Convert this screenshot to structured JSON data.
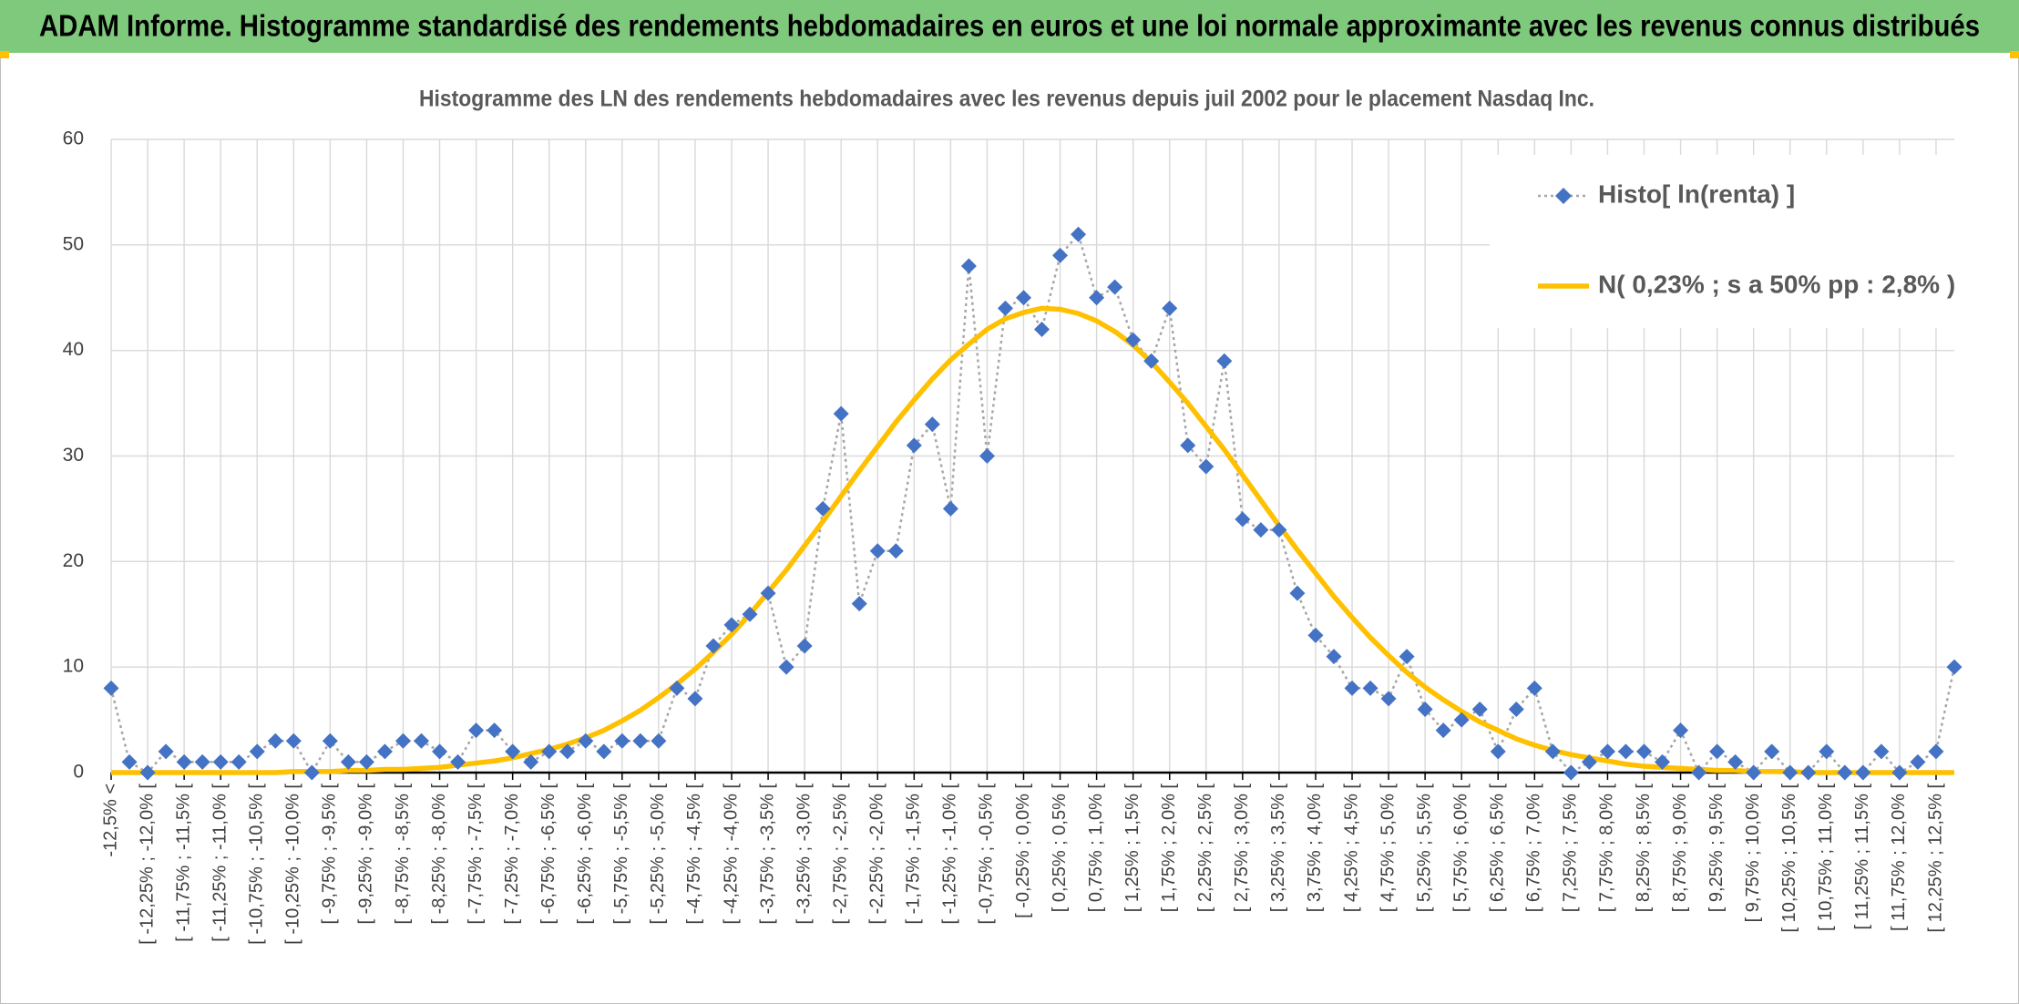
{
  "header": {
    "title": "ADAM Informe. Histogramme standardisé des rendements hebdomadaires en euros et une loi normale approximante avec les revenus connus distribués"
  },
  "chart_data": {
    "type": "line",
    "title": "Histogramme des LN des rendements hebdomadaires avec les revenus depuis juil 2002 pour le placement Nasdaq Inc.",
    "categories": [
      "-12,5% <",
      null,
      "[ -12,25% ; -12,0% [",
      null,
      "[ -11,75% ; -11,5% [",
      null,
      "[ -11,25% ; -11,0% [",
      null,
      "[ -10,75% ; -10,5% [",
      null,
      "[ -10,25% ; -10,0% [",
      null,
      "[ -9,75% ; -9,5% [",
      null,
      "[ -9,25% ; -9,0% [",
      null,
      "[ -8,75% ; -8,5% [",
      null,
      "[ -8,25% ; -8,0% [",
      null,
      "[ -7,75% ; -7,5% [",
      null,
      "[ -7,25% ; -7,0% [",
      null,
      "[ -6,75% ; -6,5% [",
      null,
      "[ -6,25% ; -6,0% [",
      null,
      "[ -5,75% ; -5,5% [",
      null,
      "[ -5,25% ; -5,0% [",
      null,
      "[ -4,75% ; -4,5% [",
      null,
      "[ -4,25% ; -4,0% [",
      null,
      "[ -3,75% ; -3,5% [",
      null,
      "[ -3,25% ; -3,0% [",
      null,
      "[ -2,75% ; -2,5% [",
      null,
      "[ -2,25% ; -2,0% [",
      null,
      "[ -1,75% ; -1,5% [",
      null,
      "[ -1,25% ; -1,0% [",
      null,
      "[ -0,75% ; -0,5% [",
      null,
      "[ -0,25% ; 0,0% [",
      null,
      "[ 0,25% ; 0,5% [",
      null,
      "[ 0,75% ; 1,0% [",
      null,
      "[ 1,25% ; 1,5% [",
      null,
      "[ 1,75% ; 2,0% [",
      null,
      "[ 2,25% ; 2,5% [",
      null,
      "[ 2,75% ; 3,0% [",
      null,
      "[ 3,25% ; 3,5% [",
      null,
      "[ 3,75% ; 4,0% [",
      null,
      "[ 4,25% ; 4,5% [",
      null,
      "[ 4,75% ; 5,0% [",
      null,
      "[ 5,25% ; 5,5% [",
      null,
      "[ 5,75% ; 6,0% [",
      null,
      "[ 6,25% ; 6,5% [",
      null,
      "[ 6,75% ; 7,0% [",
      null,
      "[ 7,25% ; 7,5% [",
      null,
      "[ 7,75% ; 8,0% [",
      null,
      "[ 8,25% ; 8,5% [",
      null,
      "[ 8,75% ; 9,0% [",
      null,
      "[ 9,25% ; 9,5% [",
      null,
      "[ 9,75% ; 10,0% [",
      null,
      "[ 10,25% ; 10,5% [",
      null,
      "[ 10,75% ; 11,0% [",
      null,
      "[ 11,25% ; 11,5% [",
      null,
      "[ 11,75% ; 12,0% [",
      null,
      "[ 12,25% ; 12,5% [",
      null
    ],
    "series": [
      {
        "name": "Histo[ ln(renta) ]",
        "color": "#4472c4",
        "values": [
          8,
          1,
          0,
          2,
          1,
          1,
          1,
          1,
          2,
          3,
          3,
          0,
          3,
          1,
          1,
          2,
          3,
          3,
          2,
          1,
          4,
          4,
          2,
          1,
          2,
          2,
          3,
          2,
          3,
          3,
          3,
          8,
          7,
          12,
          14,
          15,
          17,
          10,
          12,
          25,
          34,
          16,
          21,
          21,
          31,
          33,
          25,
          48,
          30,
          44,
          45,
          42,
          49,
          51,
          45,
          46,
          41,
          39,
          44,
          31,
          29,
          39,
          24,
          23,
          23,
          17,
          13,
          11,
          8,
          8,
          7,
          11,
          6,
          4,
          5,
          6,
          2,
          6,
          8,
          2,
          0,
          1,
          2,
          2,
          2,
          1,
          4,
          0,
          2,
          1,
          0,
          2,
          0,
          0,
          2,
          0,
          0,
          2,
          0,
          1,
          2,
          10
        ]
      },
      {
        "name": "N( 0,23% ; s a 50% pp : 2,8% )",
        "color": "#ffc000",
        "values": [
          0,
          0,
          0,
          0,
          0,
          0,
          0,
          0,
          0,
          0,
          0.1,
          0.1,
          0.1,
          0.2,
          0.2,
          0.3,
          0.3,
          0.4,
          0.5,
          0.7,
          0.9,
          1.1,
          1.4,
          1.8,
          2.2,
          2.7,
          3.3,
          4.0,
          4.9,
          5.9,
          7.1,
          8.4,
          9.8,
          11.4,
          13.1,
          15.0,
          17.1,
          19.2,
          21.5,
          23.8,
          26.2,
          28.6,
          30.9,
          33.2,
          35.3,
          37.3,
          39.1,
          40.6,
          42.0,
          43.0,
          43.6,
          44.0,
          43.9,
          43.5,
          42.8,
          41.8,
          40.5,
          38.9,
          37.0,
          35.0,
          32.8,
          30.6,
          28.2,
          25.8,
          23.4,
          21.1,
          18.9,
          16.7,
          14.7,
          12.8,
          11.1,
          9.5,
          8.1,
          6.9,
          5.8,
          4.8,
          4.0,
          3.2,
          2.6,
          2.1,
          1.7,
          1.4,
          1.1,
          0.8,
          0.6,
          0.5,
          0.4,
          0.3,
          0.2,
          0.2,
          0.1,
          0.1,
          0.1,
          0,
          0,
          0,
          0,
          0,
          0,
          0,
          0,
          0
        ]
      }
    ],
    "ylim": [
      0,
      60
    ],
    "yticks": [
      0,
      10,
      20,
      30,
      40,
      50,
      60
    ],
    "grid": true,
    "legend": "top-right"
  }
}
